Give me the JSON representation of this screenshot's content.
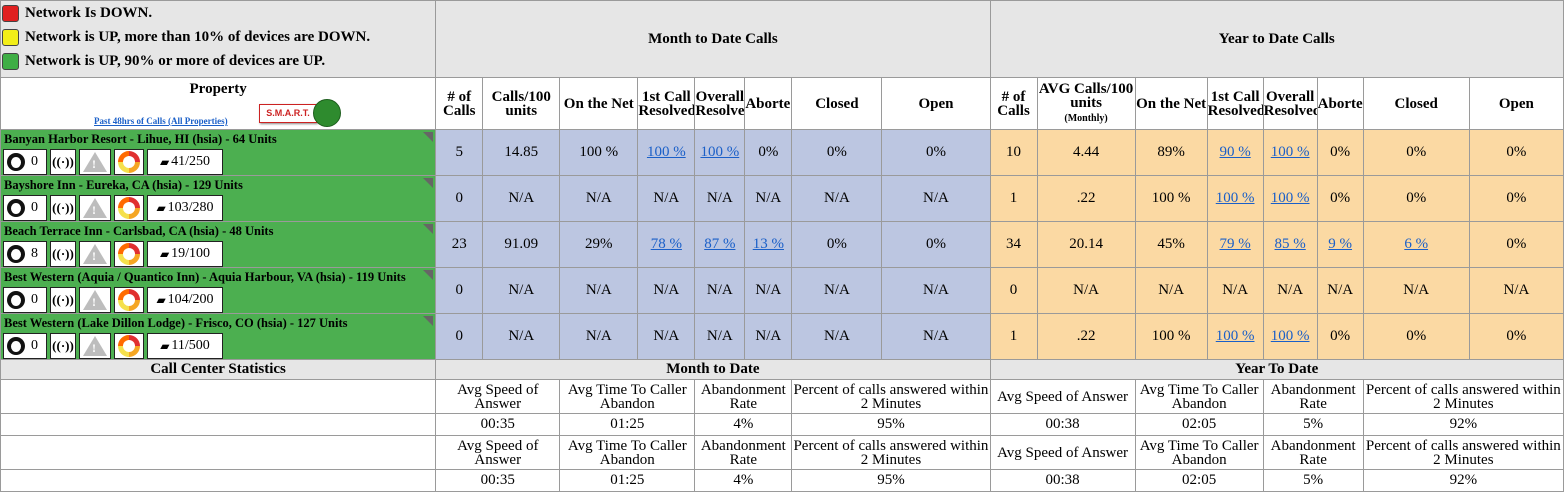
{
  "legend": [
    {
      "color": "red",
      "icon": "red-status-icon",
      "text": "Network Is DOWN."
    },
    {
      "color": "yellow",
      "icon": "yellow-status-icon",
      "text": "Network is UP, more than 10% of devices are DOWN."
    },
    {
      "color": "green",
      "icon": "green-status-icon",
      "text": "Network is UP, 90% or more of devices are UP."
    }
  ],
  "groups": {
    "mtd": "Month to Date Calls",
    "ytd": "Year to Date Calls"
  },
  "property_header": {
    "title": "Property",
    "link": "Past 48hrs of Calls (All Properties)",
    "smart": "S.M.A.R.T."
  },
  "mtd_cols": [
    "# of Calls",
    "Calls/100 units",
    "On the Net",
    "1st Call Resolved",
    "Overall Resolved",
    "Aborted",
    "Closed",
    "Open"
  ],
  "ytd_cols": [
    "# of Calls",
    "AVG Calls/100 units",
    "On the Net",
    "1st Call Resolved",
    "Overall Resolved",
    "Aborted",
    "Closed",
    "Open"
  ],
  "ytd_monthly": "(Monthly)",
  "properties": [
    {
      "name": "Banyan Harbor Resort - Lihue, HI (hsia) - 64 Units",
      "tickets": "0",
      "ratio": "41/250",
      "mtd": [
        "5",
        "14.85",
        "100 %",
        "100 %",
        "100 %",
        "0%",
        "0%",
        "0%"
      ],
      "ytd": [
        "10",
        "4.44",
        "89%",
        "90 %",
        "100 %",
        "0%",
        "0%",
        "0%"
      ]
    },
    {
      "name": "Bayshore Inn - Eureka, CA (hsia) - 129 Units",
      "tickets": "0",
      "ratio": "103/280",
      "mtd": [
        "0",
        "N/A",
        "N/A",
        "N/A",
        "N/A",
        "N/A",
        "N/A",
        "N/A"
      ],
      "ytd": [
        "1",
        ".22",
        "100 %",
        "100 %",
        "100 %",
        "0%",
        "0%",
        "0%"
      ]
    },
    {
      "name": "Beach Terrace Inn - Carlsbad, CA (hsia) - 48 Units",
      "tickets": "8",
      "ratio": "19/100",
      "mtd": [
        "23",
        "91.09",
        "29%",
        "78 %",
        "87 %",
        "13 %",
        "0%",
        "0%"
      ],
      "ytd": [
        "34",
        "20.14",
        "45%",
        "79 %",
        "85 %",
        "9 %",
        "6 %",
        "0%"
      ]
    },
    {
      "name": "Best Western (Aquia / Quantico Inn) - Aquia Harbour, VA (hsia) - 119 Units",
      "tickets": "0",
      "ratio": "104/200",
      "mtd": [
        "0",
        "N/A",
        "N/A",
        "N/A",
        "N/A",
        "N/A",
        "N/A",
        "N/A"
      ],
      "ytd": [
        "0",
        "N/A",
        "N/A",
        "N/A",
        "N/A",
        "N/A",
        "N/A",
        "N/A"
      ]
    },
    {
      "name": "Best Western (Lake Dillon Lodge) - Frisco, CO (hsia) - 127 Units",
      "tickets": "0",
      "ratio": "11/500",
      "mtd": [
        "0",
        "N/A",
        "N/A",
        "N/A",
        "N/A",
        "N/A",
        "N/A",
        "N/A"
      ],
      "ytd": [
        "1",
        ".22",
        "100 %",
        "100 %",
        "100 %",
        "0%",
        "0%",
        "0%"
      ]
    }
  ],
  "links": [
    {
      "mtd": [
        3,
        4
      ],
      "ytd": [
        3,
        4
      ]
    },
    {
      "mtd": [],
      "ytd": [
        3,
        4
      ]
    },
    {
      "mtd": [
        3,
        4,
        5
      ],
      "ytd": [
        3,
        4,
        5,
        6
      ]
    },
    {
      "mtd": [],
      "ytd": []
    },
    {
      "mtd": [],
      "ytd": [
        3,
        4
      ]
    }
  ],
  "stats": {
    "title": "Call Center Statistics",
    "mtd_title": "Month to Date",
    "ytd_title": "Year To Date",
    "headers": [
      "Avg Speed of Answer",
      "Avg Time To Caller Abandon",
      "Abandonment Rate",
      "Percent of calls answered within 2 Minutes"
    ],
    "mtd_values": [
      "00:35",
      "01:25",
      "4%",
      "95%"
    ],
    "ytd_values": [
      "00:38",
      "02:05",
      "5%",
      "92%"
    ]
  },
  "colors": {
    "mtd_bg": "#bcc6e1",
    "ytd_bg": "#fbd9a3",
    "property_green": "#4caf50",
    "link": "#1a5fc8"
  }
}
